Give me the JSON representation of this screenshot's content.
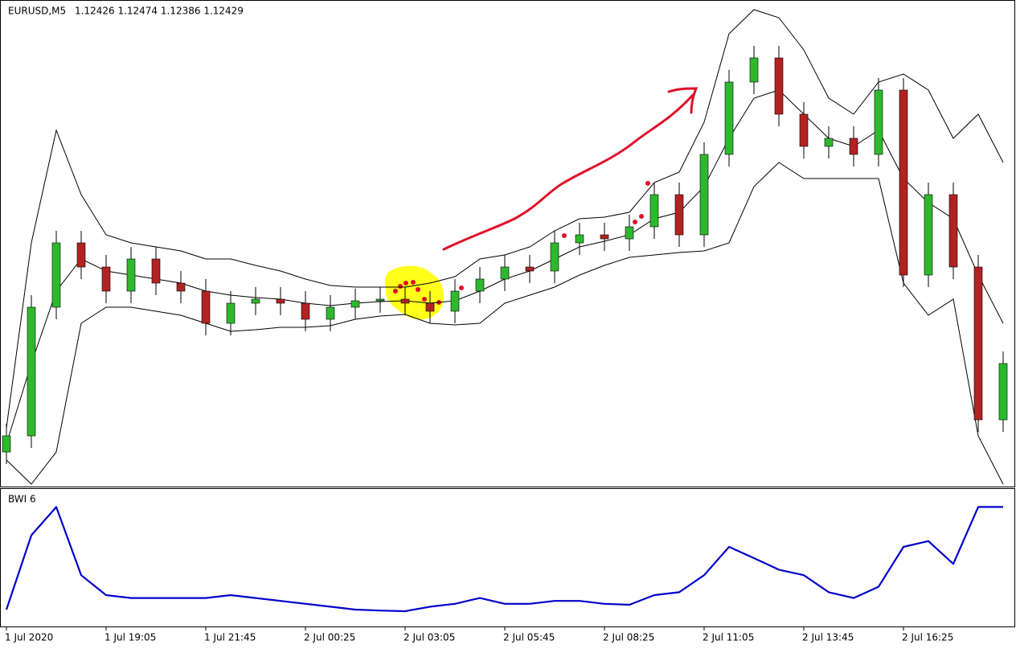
{
  "chart_data": [
    {
      "type": "candlestick",
      "title": "EURUSD,M5",
      "subtitle": "1.12426 1.12474 1.12386 1.12429",
      "categories": [
        "1 Jul 2020",
        null,
        null,
        null,
        "1 Jul 19:05",
        null,
        null,
        null,
        "1 Jul 21:45",
        null,
        null,
        null,
        "2 Jul 00:25",
        null,
        null,
        null,
        "2 Jul 03:05",
        null,
        null,
        null,
        "2 Jul 05:45",
        null,
        null,
        null,
        "2 Jul 08:25",
        null,
        null,
        null,
        "2 Jul 11:05",
        null,
        null,
        null,
        "2 Jul 13:45",
        null,
        null,
        null,
        "2 Jul 16:25",
        null,
        null,
        null,
        null
      ],
      "open": [
        1.1244,
        1.1246,
        1.1262,
        1.127,
        1.1267,
        1.1264,
        1.1268,
        1.1265,
        1.1264,
        1.126,
        1.12625,
        1.1263,
        1.12625,
        1.12605,
        1.1262,
        1.12628,
        1.1263,
        1.12625,
        1.12615,
        1.1264,
        1.12655,
        1.1267,
        1.12665,
        1.127,
        1.1271,
        1.12705,
        1.1272,
        1.1276,
        1.1271,
        1.1281,
        1.129,
        1.1293,
        1.1286,
        1.1282,
        1.1283,
        1.1281,
        1.1289,
        1.1266,
        1.1276,
        1.1267,
        1.1248
      ],
      "high": [
        1.12475,
        1.12635,
        1.12715,
        1.12715,
        1.12685,
        1.12695,
        1.12695,
        1.12665,
        1.12655,
        1.1264,
        1.12645,
        1.12645,
        1.1264,
        1.12635,
        1.12643,
        1.12645,
        1.12645,
        1.1264,
        1.12655,
        1.1267,
        1.12685,
        1.12685,
        1.12715,
        1.12725,
        1.12725,
        1.12735,
        1.12775,
        1.12775,
        1.12825,
        1.12915,
        1.12945,
        1.12945,
        1.12875,
        1.12845,
        1.12845,
        1.12905,
        1.12905,
        1.12775,
        1.12775,
        1.12685,
        1.12565
      ],
      "low": [
        1.12425,
        1.12445,
        1.12605,
        1.12655,
        1.12625,
        1.12625,
        1.12635,
        1.12625,
        1.12585,
        1.12585,
        1.1261,
        1.1261,
        1.1259,
        1.1259,
        1.12605,
        1.12613,
        1.1261,
        1.126,
        1.126,
        1.12625,
        1.1264,
        1.1265,
        1.1265,
        1.12685,
        1.1269,
        1.1269,
        1.12705,
        1.12695,
        1.12695,
        1.12795,
        1.12885,
        1.12845,
        1.12805,
        1.12805,
        1.12795,
        1.12795,
        1.12645,
        1.12645,
        1.12655,
        1.12465,
        1.12465
      ],
      "close": [
        1.1246,
        1.1262,
        1.127,
        1.1267,
        1.1264,
        1.1268,
        1.1265,
        1.1264,
        1.126,
        1.12625,
        1.1263,
        1.12625,
        1.12605,
        1.1262,
        1.12628,
        1.1263,
        1.12625,
        1.12615,
        1.1264,
        1.12655,
        1.1267,
        1.12665,
        1.127,
        1.1271,
        1.12705,
        1.1272,
        1.1276,
        1.1271,
        1.1281,
        1.129,
        1.1293,
        1.1286,
        1.1282,
        1.1283,
        1.1281,
        1.1289,
        1.1266,
        1.1276,
        1.1267,
        1.1248,
        1.1255
      ],
      "up_color": "#2eb82e",
      "down_color": "#b22222",
      "wick_color": "#000000",
      "bands": [
        {
          "color": "#000000",
          "values": [
            1.1247,
            1.127,
            1.1284,
            1.1276,
            1.1271,
            1.127,
            1.12695,
            1.1269,
            1.1268,
            1.1268,
            1.12672,
            1.12665,
            1.12655,
            1.12647,
            1.12645,
            1.12645,
            1.12645,
            1.1265,
            1.12658,
            1.1268,
            1.12685,
            1.12695,
            1.12715,
            1.1273,
            1.12732,
            1.12738,
            1.12775,
            1.12788,
            1.1285,
            1.1296,
            1.1299,
            1.1298,
            1.1294,
            1.1288,
            1.1286,
            1.129,
            1.1291,
            1.1289,
            1.1283,
            1.1286,
            1.128
          ]
        },
        {
          "color": "#000000",
          "values": [
            1.1245,
            1.1255,
            1.1264,
            1.1268,
            1.12665,
            1.1266,
            1.12655,
            1.1265,
            1.1264,
            1.12635,
            1.12632,
            1.1263,
            1.12625,
            1.12622,
            1.12625,
            1.12627,
            1.12628,
            1.12625,
            1.12628,
            1.1264,
            1.12655,
            1.12665,
            1.1268,
            1.12695,
            1.12702,
            1.1271,
            1.1273,
            1.12738,
            1.1277,
            1.1283,
            1.1288,
            1.1289,
            1.1286,
            1.1283,
            1.1282,
            1.1284,
            1.1278,
            1.1275,
            1.1273,
            1.1266,
            1.126
          ]
        },
        {
          "color": "#000000",
          "values": [
            1.1243,
            1.124,
            1.1244,
            1.126,
            1.1262,
            1.1262,
            1.12615,
            1.1261,
            1.126,
            1.1259,
            1.12592,
            1.12595,
            1.12595,
            1.12597,
            1.12605,
            1.12609,
            1.12611,
            1.126,
            1.12598,
            1.126,
            1.12625,
            1.12635,
            1.12645,
            1.1266,
            1.12672,
            1.12682,
            1.12685,
            1.12688,
            1.1269,
            1.127,
            1.1277,
            1.128,
            1.1278,
            1.1278,
            1.1278,
            1.1278,
            1.1265,
            1.1261,
            1.1263,
            1.1246,
            1.124
          ]
        }
      ],
      "ylim": [
        1.124,
        1.13
      ]
    },
    {
      "type": "line",
      "title": "BWI 6",
      "color": "#0000cc",
      "values": [
        0.035,
        0.266,
        0.354,
        0.142,
        0.08,
        0.071,
        0.071,
        0.071,
        0.071,
        0.08,
        0.071,
        0.062,
        0.053,
        0.044,
        0.035,
        0.032,
        0.03,
        0.044,
        0.053,
        0.071,
        0.053,
        0.053,
        0.062,
        0.062,
        0.053,
        0.05,
        0.08,
        0.089,
        0.142,
        0.23,
        0.195,
        0.159,
        0.142,
        0.089,
        0.071,
        0.106,
        0.23,
        0.248,
        0.177,
        0.354,
        0.354
      ],
      "ylim": [
        0,
        0.4
      ]
    }
  ]
}
